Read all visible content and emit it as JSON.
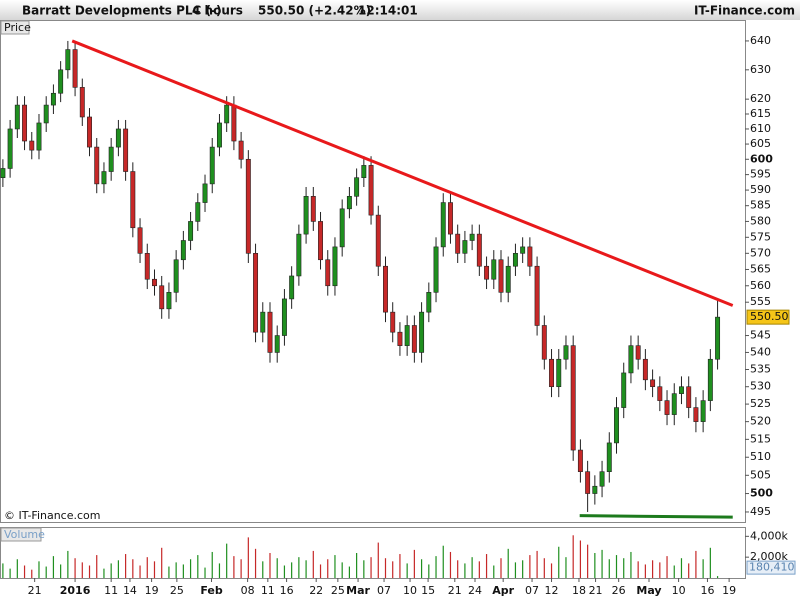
{
  "header": {
    "title": "Barratt Developments PLC (-)",
    "interval": "4 hours",
    "quote": "550.50 (+2.42%)",
    "time": "12:14:01",
    "brand": "IT-Finance.com"
  },
  "chart_data": [
    {
      "type": "candlestick",
      "label": "Price",
      "watermark": "© IT-Finance.com",
      "log_scale": true,
      "grid": false,
      "up_color": "#1f8f1f",
      "down_color": "#c62828",
      "x": [
        0,
        1,
        2,
        3,
        4,
        5,
        6,
        7,
        8,
        9,
        10,
        11,
        12,
        13,
        14,
        15,
        16,
        17,
        18,
        19,
        20,
        21,
        22,
        23,
        24,
        25,
        26,
        27,
        28,
        29,
        30,
        31,
        32,
        33,
        34,
        35,
        36,
        37,
        38,
        39,
        40,
        41,
        42,
        43,
        44,
        45,
        46,
        47,
        48,
        49,
        50,
        51,
        52,
        53,
        54,
        55,
        56,
        57,
        58,
        59,
        60,
        61,
        62,
        63,
        64,
        65,
        66,
        67,
        68,
        69,
        70,
        71,
        72,
        73,
        74,
        75,
        76,
        77,
        78,
        79,
        80,
        81,
        82,
        83,
        84,
        85,
        86,
        87,
        88,
        89,
        90,
        91,
        92,
        93,
        94,
        95,
        96,
        97,
        98,
        99
      ],
      "open": [
        594,
        597,
        610,
        618,
        606,
        603,
        612,
        618,
        622,
        630,
        637,
        624,
        614,
        604,
        592,
        596,
        604,
        610,
        596,
        578,
        570,
        562,
        560,
        553,
        558,
        568,
        574,
        580,
        586,
        592,
        604,
        612,
        618,
        606,
        600,
        570,
        546,
        552,
        540,
        545,
        556,
        563,
        576,
        588,
        580,
        568,
        560,
        572,
        584,
        588,
        594,
        598,
        582,
        566,
        552,
        546,
        542,
        548,
        540,
        552,
        558,
        572,
        586,
        576,
        570,
        574,
        576,
        566,
        562,
        568,
        558,
        566,
        570,
        572,
        566,
        548,
        538,
        530,
        538,
        542,
        512,
        506,
        500,
        502,
        506,
        514,
        524,
        534,
        542,
        538,
        532,
        530,
        526,
        522,
        528,
        530,
        524,
        520,
        526,
        538
      ],
      "high": [
        600,
        613,
        621,
        621,
        609,
        615,
        621,
        625,
        633,
        640,
        640,
        627,
        617,
        607,
        599,
        607,
        613,
        613,
        599,
        581,
        573,
        565,
        563,
        561,
        571,
        577,
        583,
        589,
        595,
        607,
        615,
        621,
        621,
        609,
        603,
        573,
        555,
        555,
        548,
        559,
        566,
        579,
        591,
        591,
        583,
        571,
        575,
        587,
        591,
        597,
        601,
        601,
        585,
        569,
        555,
        549,
        551,
        551,
        555,
        561,
        575,
        589,
        589,
        579,
        577,
        579,
        579,
        569,
        571,
        571,
        569,
        573,
        575,
        575,
        569,
        551,
        541,
        541,
        545,
        545,
        515,
        509,
        505,
        509,
        517,
        527,
        537,
        545,
        545,
        541,
        535,
        533,
        529,
        531,
        533,
        533,
        527,
        529,
        541,
        556
      ],
      "low": [
        591,
        594,
        607,
        603,
        600,
        600,
        609,
        615,
        619,
        627,
        621,
        611,
        601,
        589,
        589,
        593,
        601,
        593,
        575,
        567,
        559,
        557,
        550,
        550,
        555,
        565,
        571,
        577,
        583,
        589,
        601,
        609,
        603,
        597,
        567,
        543,
        543,
        537,
        537,
        542,
        553,
        560,
        573,
        577,
        565,
        557,
        557,
        569,
        581,
        585,
        591,
        579,
        563,
        549,
        543,
        539,
        539,
        537,
        537,
        549,
        555,
        569,
        573,
        567,
        567,
        571,
        563,
        559,
        559,
        555,
        555,
        563,
        567,
        563,
        545,
        535,
        527,
        527,
        535,
        509,
        503,
        495,
        497,
        499,
        503,
        511,
        521,
        531,
        535,
        529,
        527,
        523,
        519,
        519,
        525,
        521,
        517,
        517,
        523,
        535
      ],
      "close": [
        597,
        610,
        618,
        606,
        603,
        612,
        618,
        622,
        630,
        637,
        624,
        614,
        604,
        592,
        596,
        604,
        610,
        596,
        578,
        570,
        562,
        560,
        553,
        558,
        568,
        574,
        580,
        586,
        592,
        604,
        612,
        618,
        606,
        600,
        570,
        546,
        552,
        540,
        545,
        556,
        563,
        576,
        588,
        580,
        568,
        560,
        572,
        584,
        588,
        594,
        598,
        582,
        566,
        552,
        546,
        542,
        548,
        540,
        552,
        558,
        572,
        586,
        576,
        570,
        574,
        576,
        566,
        562,
        568,
        558,
        566,
        570,
        572,
        566,
        548,
        538,
        530,
        538,
        542,
        512,
        506,
        500,
        502,
        506,
        514,
        524,
        534,
        542,
        538,
        532,
        530,
        526,
        522,
        528,
        530,
        524,
        520,
        526,
        538,
        550.5
      ],
      "xlim": [
        -0.4,
        102.8
      ],
      "ylim": [
        492.3,
        647
      ],
      "yticks": [
        640,
        630,
        620,
        615,
        610,
        605,
        600,
        595,
        590,
        585,
        580,
        575,
        570,
        565,
        560,
        555,
        545,
        540,
        535,
        530,
        525,
        520,
        515,
        510,
        505,
        500,
        495
      ],
      "xticks": [
        {
          "value": 4.4,
          "label": "21"
        },
        {
          "value": 10.0,
          "label": "2016"
        },
        {
          "value": 15.0,
          "label": "11"
        },
        {
          "value": 17.6,
          "label": "14"
        },
        {
          "value": 20.6,
          "label": "19"
        },
        {
          "value": 24.1,
          "label": "25"
        },
        {
          "value": 28.9,
          "label": "Feb"
        },
        {
          "value": 33.9,
          "label": "08"
        },
        {
          "value": 36.7,
          "label": "11"
        },
        {
          "value": 39.3,
          "label": "16"
        },
        {
          "value": 43.4,
          "label": "22"
        },
        {
          "value": 46.4,
          "label": "25"
        },
        {
          "value": 49.2,
          "label": "Mar"
        },
        {
          "value": 52.8,
          "label": "07"
        },
        {
          "value": 56.4,
          "label": "10"
        },
        {
          "value": 58.9,
          "label": "15"
        },
        {
          "value": 62.6,
          "label": "21"
        },
        {
          "value": 65.4,
          "label": "24"
        },
        {
          "value": 69.3,
          "label": "Apr"
        },
        {
          "value": 73.3,
          "label": "07"
        },
        {
          "value": 76.0,
          "label": "12"
        },
        {
          "value": 79.8,
          "label": "18"
        },
        {
          "value": 82.1,
          "label": "21"
        },
        {
          "value": 85.3,
          "label": "26"
        },
        {
          "value": 89.5,
          "label": "May"
        },
        {
          "value": 93.6,
          "label": "10"
        },
        {
          "value": 97.6,
          "label": "16"
        },
        {
          "value": 100.6,
          "label": "19"
        }
      ],
      "lines": [
        {
          "color": "#e8191b",
          "x": [
            9.6,
            101.1
          ],
          "y": [
            640,
            554
          ]
        },
        {
          "color": "#1c7a1c",
          "x": [
            79.9,
            101.1
          ],
          "y": [
            494,
            493.6
          ]
        }
      ],
      "last_price": {
        "value": 550.5,
        "label": "550.50"
      }
    },
    {
      "type": "bar",
      "label": "Volume",
      "values": [
        1400000,
        900000,
        1800000,
        1200000,
        800000,
        1600000,
        1100000,
        2100000,
        1300000,
        2600000,
        1900000,
        1500000,
        1200000,
        2200000,
        900000,
        1400000,
        1700000,
        2300000,
        1800000,
        1200000,
        2000000,
        1600000,
        2900000,
        1100000,
        1500000,
        1300000,
        1800000,
        2200000,
        1000000,
        2500000,
        1400000,
        3300000,
        2100000,
        1800000,
        3900000,
        2800000,
        1600000,
        2400000,
        1900000,
        1200000,
        1500000,
        2000000,
        1700000,
        2600000,
        1300000,
        1800000,
        2200000,
        1500000,
        1100000,
        2400000,
        1700000,
        2000000,
        3400000,
        1900000,
        1600000,
        2300000,
        1400000,
        2700000,
        1800000,
        1300000,
        2100000,
        3100000,
        2500000,
        1700000,
        1400000,
        2000000,
        1600000,
        2300000,
        1200000,
        1900000,
        2800000,
        1500000,
        1700000,
        2200000,
        2600000,
        1900000,
        1400000,
        3000000,
        2000000,
        4100000,
        3600000,
        3200000,
        2400000,
        2700000,
        1800000,
        2200000,
        1900000,
        2500000,
        1600000,
        1300000,
        1700000,
        1500000,
        2100000,
        1200000,
        1900000,
        1400000,
        2600000,
        1800000,
        2900000,
        180410
      ],
      "ylim": [
        0,
        4800000
      ],
      "yticks": [
        {
          "value": 4000000,
          "label": "4,000k"
        },
        {
          "value": 2000000,
          "label": "2,000k"
        }
      ],
      "last_volume": {
        "value": 180410,
        "label": "180,410"
      }
    }
  ]
}
